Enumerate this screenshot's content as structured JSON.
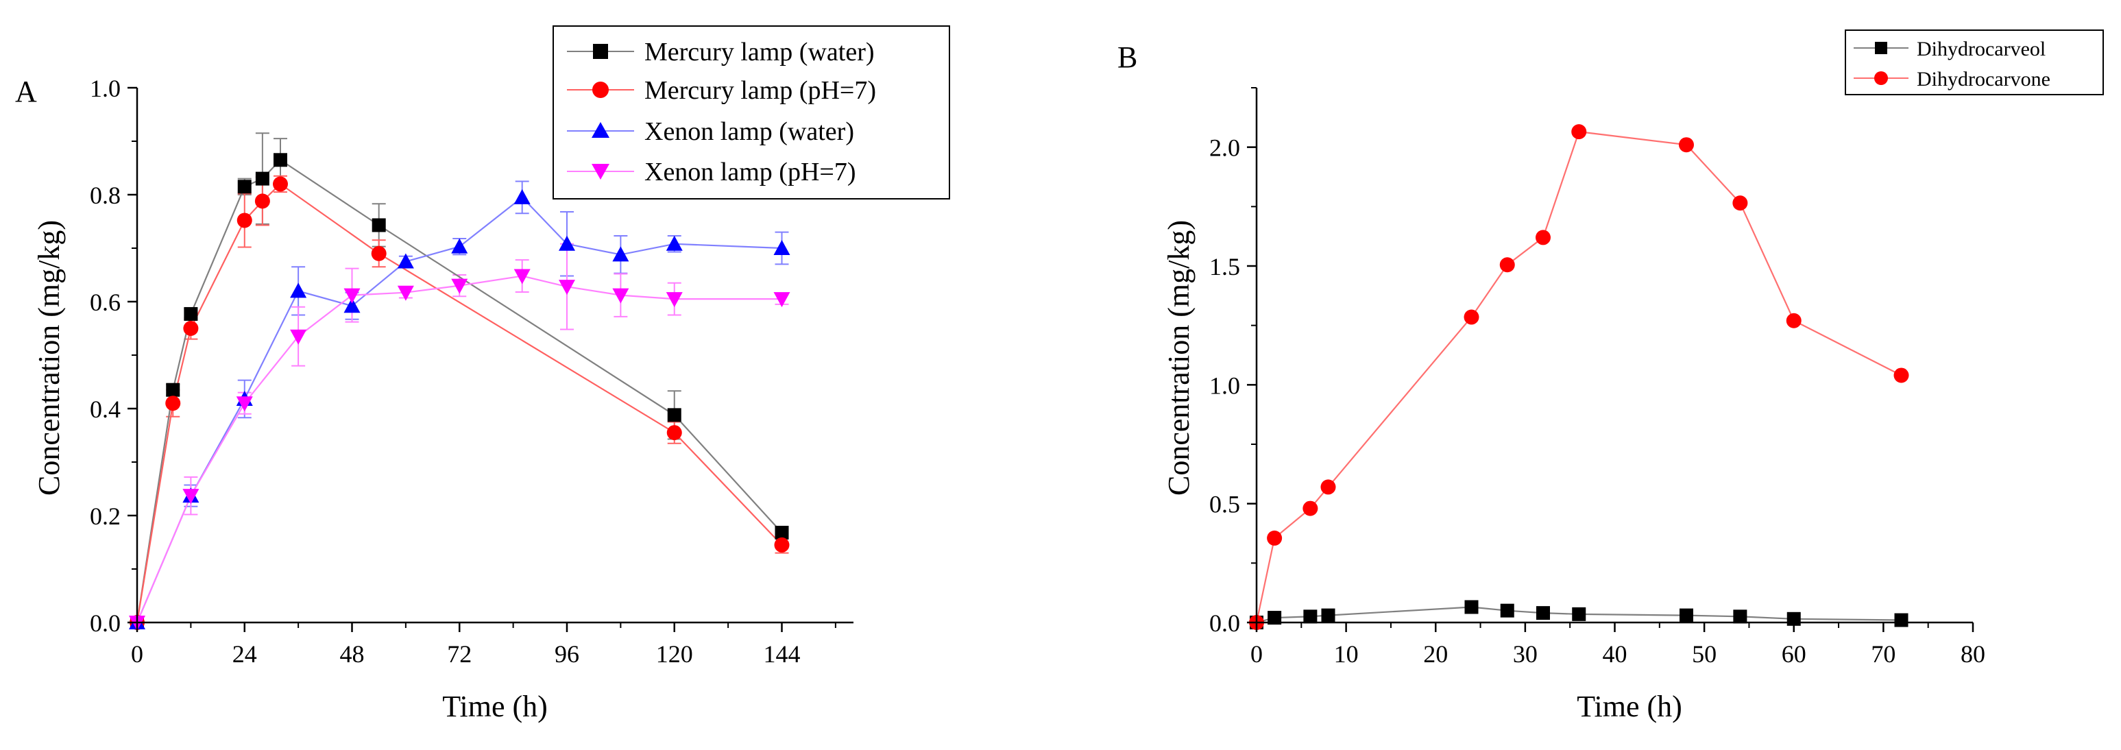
{
  "chart_data": [
    {
      "panel_label": "A",
      "type": "line",
      "xlabel": "Time (h)",
      "ylabel": "Concentration (mg/kg)",
      "xlim": [
        0,
        160
      ],
      "ylim": [
        0,
        1.0
      ],
      "xticks": [
        0,
        24,
        48,
        72,
        96,
        120,
        144
      ],
      "yticks": [
        0.0,
        0.2,
        0.4,
        0.6,
        0.8,
        1.0
      ],
      "ytick_labels": [
        "0.0",
        "0.2",
        "0.4",
        "0.6",
        "0.8",
        "1.0"
      ],
      "legend_position": "top-right",
      "series": [
        {
          "name": "Mercury lamp (water)",
          "color": "#000000",
          "line_color": "#808080",
          "marker": "square",
          "x": [
            0,
            8,
            12,
            24,
            28,
            32,
            54,
            120,
            144
          ],
          "y": [
            0.0,
            0.435,
            0.577,
            0.815,
            0.83,
            0.865,
            0.743,
            0.388,
            0.168
          ],
          "err": [
            0,
            0.01,
            0.01,
            0.015,
            0.085,
            0.04,
            0.04,
            0.045,
            0.01
          ]
        },
        {
          "name": "Mercury lamp (pH=7)",
          "color": "#ff0000",
          "line_color": "#ff6060",
          "marker": "circle",
          "x": [
            0,
            8,
            12,
            24,
            28,
            32,
            54,
            120,
            144
          ],
          "y": [
            0.0,
            0.41,
            0.55,
            0.752,
            0.788,
            0.82,
            0.69,
            0.355,
            0.145
          ],
          "err": [
            0,
            0.025,
            0.02,
            0.05,
            0.045,
            0.015,
            0.025,
            0.02,
            0.015
          ]
        },
        {
          "name": "Xenon lamp (water)",
          "color": "#0000ff",
          "line_color": "#8080ff",
          "marker": "triangle-up",
          "x": [
            0,
            12,
            24,
            36,
            48,
            60,
            72,
            86,
            96,
            108,
            120,
            144
          ],
          "y": [
            0.0,
            0.237,
            0.418,
            0.62,
            0.592,
            0.675,
            0.703,
            0.795,
            0.708,
            0.688,
            0.708,
            0.7
          ],
          "err": [
            0,
            0.02,
            0.035,
            0.045,
            0.025,
            0.01,
            0.015,
            0.03,
            0.06,
            0.035,
            0.015,
            0.03
          ]
        },
        {
          "name": "Xenon lamp (pH=7)",
          "color": "#ff00ff",
          "line_color": "#ff80ff",
          "marker": "triangle-down",
          "x": [
            0,
            12,
            24,
            36,
            48,
            60,
            72,
            86,
            96,
            108,
            120,
            144
          ],
          "y": [
            0.0,
            0.237,
            0.41,
            0.535,
            0.612,
            0.617,
            0.63,
            0.648,
            0.628,
            0.612,
            0.605,
            0.605
          ],
          "err": [
            0,
            0.035,
            0.02,
            0.055,
            0.05,
            0.01,
            0.02,
            0.03,
            0.08,
            0.04,
            0.03,
            0.01
          ]
        }
      ]
    },
    {
      "panel_label": "B",
      "type": "line",
      "xlabel": "Time (h)",
      "ylabel": "Concentration (mg/kg)",
      "xlim": [
        0,
        80
      ],
      "ylim": [
        0,
        2.25
      ],
      "xticks": [
        0,
        10,
        20,
        30,
        40,
        50,
        60,
        70,
        80
      ],
      "yticks": [
        0.0,
        0.5,
        1.0,
        1.5,
        2.0
      ],
      "ytick_labels": [
        "0.0",
        "0.5",
        "1.0",
        "1.5",
        "2.0"
      ],
      "legend_position": "top-right",
      "series": [
        {
          "name": "Dihydrocarveol",
          "color": "#000000",
          "line_color": "#808080",
          "marker": "square",
          "x": [
            0,
            2,
            6,
            8,
            24,
            28,
            32,
            36,
            48,
            54,
            60,
            72
          ],
          "y": [
            0.0,
            0.02,
            0.025,
            0.03,
            0.065,
            0.05,
            0.04,
            0.035,
            0.03,
            0.025,
            0.015,
            0.01
          ]
        },
        {
          "name": "Dihydrocarvone",
          "color": "#ff0000",
          "line_color": "#ff7070",
          "marker": "circle",
          "x": [
            0,
            2,
            6,
            8,
            24,
            28,
            32,
            36,
            48,
            54,
            60,
            72
          ],
          "y": [
            0.0,
            0.355,
            0.48,
            0.57,
            1.285,
            1.505,
            1.62,
            2.065,
            2.01,
            1.765,
            1.27,
            1.04
          ]
        }
      ]
    }
  ]
}
